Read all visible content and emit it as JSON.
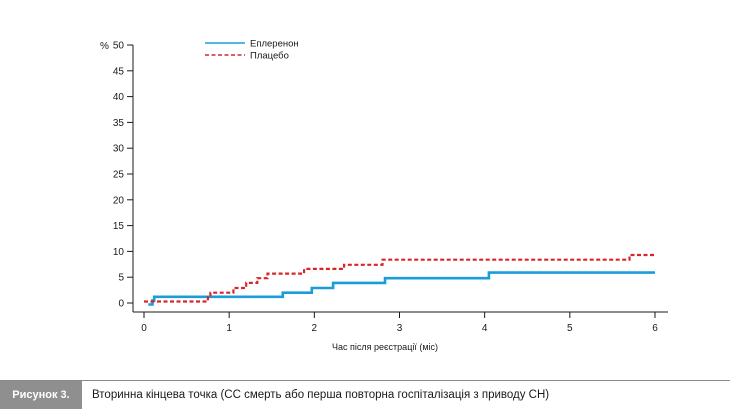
{
  "chart_data": {
    "type": "line",
    "xlabel": "Час після реєстрації (міс)",
    "ylabel": "%",
    "xlim": [
      0,
      6
    ],
    "ylim": [
      0,
      50
    ],
    "xticks": [
      "0",
      "1",
      "2",
      "3",
      "4",
      "5",
      "6"
    ],
    "yticks": [
      "0",
      "5",
      "10",
      "15",
      "20",
      "25",
      "30",
      "35",
      "40",
      "45",
      "50"
    ],
    "grid": false,
    "legend_position": "top-left",
    "series": [
      {
        "name": "Еплеренон",
        "color": "#1a9ed9",
        "style": "solid",
        "points": [
          [
            0.05,
            -0.3
          ],
          [
            0.1,
            -0.3
          ],
          [
            0.1,
            0.5
          ],
          [
            0.12,
            0.5
          ],
          [
            0.12,
            1.2
          ],
          [
            1.63,
            1.2
          ],
          [
            1.63,
            2.0
          ],
          [
            1.97,
            2.0
          ],
          [
            1.97,
            2.9
          ],
          [
            2.22,
            2.9
          ],
          [
            2.22,
            3.9
          ],
          [
            2.83,
            3.9
          ],
          [
            2.83,
            4.8
          ],
          [
            4.05,
            4.8
          ],
          [
            4.05,
            5.9
          ],
          [
            6.0,
            5.9
          ]
        ]
      },
      {
        "name": "Плацебо",
        "color": "#d7262b",
        "style": "dashed",
        "points": [
          [
            0.0,
            0.3
          ],
          [
            0.75,
            0.3
          ],
          [
            0.75,
            1.2
          ],
          [
            0.78,
            1.2
          ],
          [
            0.78,
            2.0
          ],
          [
            1.05,
            2.0
          ],
          [
            1.05,
            2.9
          ],
          [
            1.2,
            2.9
          ],
          [
            1.2,
            3.9
          ],
          [
            1.33,
            3.9
          ],
          [
            1.33,
            4.8
          ],
          [
            1.45,
            4.8
          ],
          [
            1.45,
            5.7
          ],
          [
            1.88,
            5.7
          ],
          [
            1.88,
            6.6
          ],
          [
            2.35,
            6.6
          ],
          [
            2.35,
            7.4
          ],
          [
            2.8,
            7.4
          ],
          [
            2.8,
            8.4
          ],
          [
            5.7,
            8.4
          ],
          [
            5.7,
            9.3
          ],
          [
            6.0,
            9.3
          ]
        ]
      }
    ]
  },
  "caption": {
    "label": "Рисунок 3.",
    "text": "Вторинна кінцева точка (СС смерть або перша повторна госпіталізація з приводу СН)"
  }
}
